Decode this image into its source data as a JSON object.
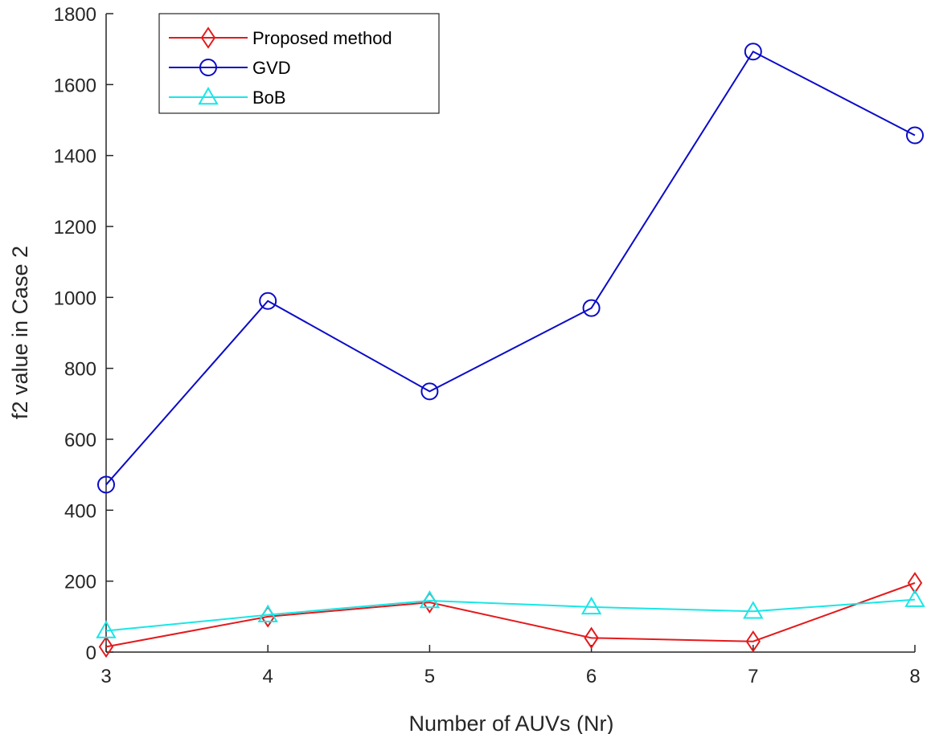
{
  "chart_data": {
    "type": "line",
    "title": "",
    "xlabel": "Number of AUVs (Nr)",
    "ylabel": "f2 value in Case 2",
    "x": [
      3,
      4,
      5,
      6,
      7,
      8
    ],
    "xlim": [
      3,
      8
    ],
    "ylim": [
      0,
      1800
    ],
    "xticks": [
      "3",
      "4",
      "5",
      "6",
      "7",
      "8"
    ],
    "yticks": [
      "0",
      "200",
      "400",
      "600",
      "800",
      "1000",
      "1200",
      "1400",
      "1600",
      "1800"
    ],
    "grid": false,
    "legend_position": "top-left",
    "series": [
      {
        "name": "Proposed method",
        "color": "#e31a1c",
        "marker": "diamond",
        "values": [
          15,
          100,
          140,
          40,
          30,
          195
        ]
      },
      {
        "name": "GVD",
        "color": "#0b0bc8",
        "marker": "circle",
        "values": [
          472,
          990,
          735,
          970,
          1693,
          1457
        ]
      },
      {
        "name": "BoB",
        "color": "#19e6e6",
        "marker": "triangle",
        "values": [
          60,
          105,
          145,
          127,
          115,
          148
        ]
      }
    ]
  }
}
